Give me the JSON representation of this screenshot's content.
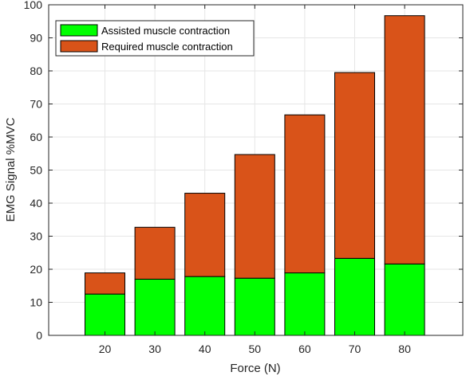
{
  "chart_data": {
    "type": "bar",
    "stacked": true,
    "categories": [
      "20",
      "30",
      "40",
      "50",
      "60",
      "70",
      "80"
    ],
    "series": [
      {
        "name": "Assisted muscle contraction",
        "color": "#00ff00",
        "values": [
          12.5,
          17,
          17.8,
          17.3,
          18.9,
          23.3,
          21.6
        ]
      },
      {
        "name": "Required muscle contraction",
        "color": "#d95319",
        "values": [
          6.4,
          15.7,
          25.2,
          37.4,
          47.8,
          56.2,
          75.1
        ]
      }
    ],
    "title": "",
    "xlabel": "Force (N)",
    "ylabel": "EMG Signal %MVC",
    "ylim": [
      0,
      100
    ],
    "yticks": [
      "0",
      "10",
      "20",
      "30",
      "40",
      "50",
      "60",
      "70",
      "80",
      "90",
      "100"
    ],
    "grid": true,
    "legend_position": "top-left"
  }
}
